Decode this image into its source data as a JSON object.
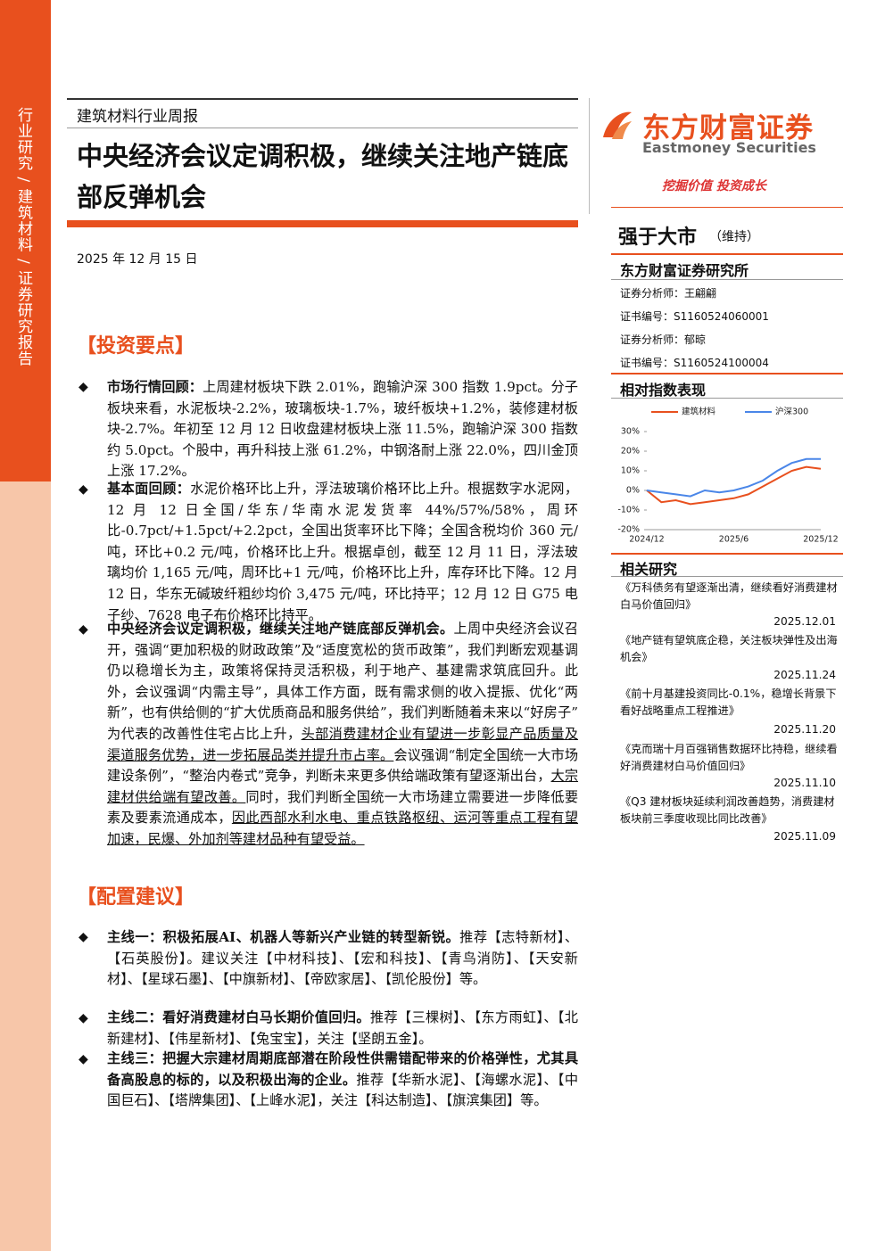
{
  "sidebar": {
    "text": "行业研究 / 建筑材料 / 证券研究报告"
  },
  "header": {
    "category": "建筑材料行业周报",
    "title": "中央经济会议定调积极，继续关注地产链底部反弹机会",
    "date": "2025 年 12 月 15 日"
  },
  "brand": {
    "name_cn": "东方财富证券",
    "name_en": "Eastmoney Securities",
    "slogan": "挖掘价值 投资成长"
  },
  "rating": {
    "label": "强于大市",
    "status": "（维持）"
  },
  "institute": {
    "name": "东方财富证券研究所",
    "analysts": [
      {
        "role": "证券分析师：",
        "name": "王翩翩"
      },
      {
        "role": "证书编号：",
        "name": "S1160524060001"
      },
      {
        "role": "证券分析师：",
        "name": "郁晾"
      },
      {
        "role": "证书编号：",
        "name": "S1160524100004"
      }
    ]
  },
  "investment_points": {
    "heading": "【投资要点】",
    "items": [
      {
        "lead": "市场行情回顾：",
        "body": "上周建材板块下跌 2.01%，跑输沪深 300 指数 1.9pct。分子板块来看，水泥板块-2.2%，玻璃板块-1.7%，玻纤板块+1.2%，装修建材板块-2.7%。年初至 12 月 12 日收盘建材板块上涨 11.5%，跑输沪深 300 指数约 5.0pct。个股中，再升科技上涨 61.2%，中钢洛耐上涨 22.0%，四川金顶上涨 17.2%。"
      },
      {
        "lead": "基本面回顾：",
        "body": "水泥价格环比上升，浮法玻璃价格环比上升。根据数字水泥网，12 月 12 日全国/华东/华南水泥发货率 44%/57%/58%，周环比-0.7pct/+1.5pct/+2.2pct，全国出货率环比下降；全国含税均价 360 元/吨，环比+0.2 元/吨，价格环比上升。根据卓创，截至 12 月 11 日，浮法玻璃均价 1,165 元/吨，周环比+1 元/吨，价格环比上升，库存环比下降。12 月 12 日，华东无碱玻纤粗纱均价 3,475 元/吨，环比持平；12 月 12 日 G75 电子纱、7628 电子布价格环比持平。"
      },
      {
        "lead": "中央经济会议定调积极，继续关注地产链底部反弹机会。",
        "segments": [
          "上周中央经济会议召开，强调“更加积极的财政政策”及“适度宽松的货币政策”，我们判断宏观基调仍以稳增长为主，政策将保持灵活积极，利于地产、基建需求筑底回升。此外，会议强调“内需主导”，具体工作方面，既有需求侧的收入提振、优化“两新”，也有供给侧的“扩大优质商品和服务供给”，我们判断随着未来以“好房子”为代表的改善性住宅占比上升，",
          "头部消费建材企业有望进一步彰显产品质量及渠道服务优势，进一步拓展品类并提升市占率。",
          "会议强调“制定全国统一大市场建设条例”，“整治内卷式”竞争，判断未来更多供给端政策有望逐渐出台，",
          "大宗建材供给端有望改善。",
          "同时，我们判断全国统一大市场建立需要进一步降低要素及要素流通成本，",
          "因此西部水利水电、重点铁路枢纽、运河等重点工程有望加速，民爆、外加剂等建材品种有望受益。"
        ]
      }
    ]
  },
  "allocation": {
    "heading": "【配置建议】",
    "items": [
      {
        "lead": "主线一：积极拓展AI、机器人等新兴产业链的转型新锐。",
        "body": "推荐【志特新材】、【石英股份】。建议关注【中材科技】、【宏和科技】、【青鸟消防】、【天安新材】、【星球石墨】、【中旗新材】、【帝欧家居】、【凯伦股份】等。"
      },
      {
        "lead": "主线二：看好消费建材白马长期价值回归。",
        "body": "推荐【三棵树】、【东方雨虹】、【北新建材】、【伟星新材】、【兔宝宝】，关注【坚朗五金】。"
      },
      {
        "lead": "主线三：把握大宗建材周期底部潜在阶段性供需错配带来的价格弹性，尤其具备高股息的标的，以及积极出海的企业。",
        "body": "推荐【华新水泥】、【海螺水泥】、【中国巨石】、【塔牌集团】、【上峰水泥】，关注【科达制造】、【旗滨集团】等。"
      }
    ]
  },
  "performance": {
    "heading": "相对指数表现",
    "chart_data": {
      "type": "line",
      "categories": [
        "2024/12",
        null,
        null,
        null,
        null,
        null,
        "2025/6",
        null,
        null,
        null,
        null,
        null,
        "2025/12"
      ],
      "series": [
        {
          "name": "建筑材料",
          "color": "#e8501e",
          "values": [
            0,
            -6,
            -5,
            -7,
            -6,
            -5,
            -4,
            -2,
            2,
            6,
            10,
            12,
            11
          ]
        },
        {
          "name": "沪深300",
          "color": "#4a86e8",
          "values": [
            0,
            -1,
            -2,
            -3,
            0,
            -1,
            0,
            2,
            5,
            10,
            14,
            16,
            16
          ]
        }
      ],
      "ylim": [
        -20,
        30
      ],
      "yticks": [
        {
          "value": -20,
          "label": "-20%"
        },
        {
          "value": -10,
          "label": "-10%"
        },
        {
          "value": 0,
          "label": "0%"
        },
        {
          "value": 10,
          "label": "10%"
        },
        {
          "value": 20,
          "label": "20%"
        },
        {
          "value": 30,
          "label": "30%"
        }
      ],
      "legend": "top"
    }
  },
  "related": {
    "heading": "相关研究",
    "items": [
      {
        "title": "《万科债务有望逐渐出清，继续看好消费建材白马价值回归》",
        "date": "2025.12.01"
      },
      {
        "title": "《地产链有望筑底企稳，关注板块弹性及出海机会》",
        "date": "2025.11.24"
      },
      {
        "title": "《前十月基建投资同比-0.1%，稳增长背景下看好战略重点工程推进》",
        "date": "2025.11.20"
      },
      {
        "title": "《克而瑞十月百强销售数据环比持稳，继续看好消费建材白马价值回归》",
        "date": "2025.11.10"
      },
      {
        "title": "《Q3 建材板块延续利润改善趋势，消费建材板块前三季度收现比同比改善》",
        "date": "2025.11.09"
      }
    ]
  }
}
